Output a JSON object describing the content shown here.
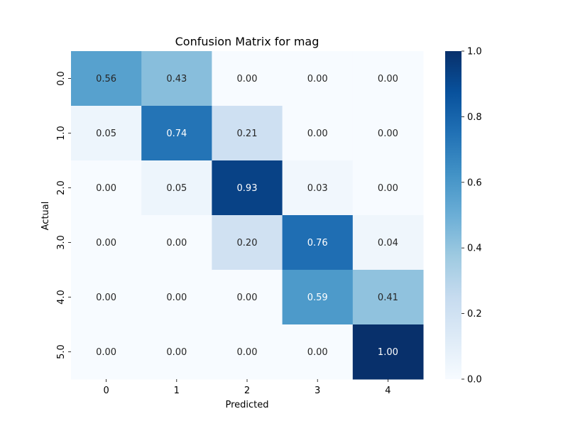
{
  "chart_data": {
    "type": "heatmap",
    "title": "Confusion Matrix for mag",
    "xlabel": "Predicted",
    "ylabel": "Actual",
    "x_categories": [
      "0",
      "1",
      "2",
      "3",
      "4"
    ],
    "y_categories": [
      "0.0",
      "1.0",
      "2.0",
      "3.0",
      "4.0",
      "5.0"
    ],
    "values": [
      [
        0.56,
        0.43,
        0.0,
        0.0,
        0.0
      ],
      [
        0.05,
        0.74,
        0.21,
        0.0,
        0.0
      ],
      [
        0.0,
        0.05,
        0.93,
        0.03,
        0.0
      ],
      [
        0.0,
        0.0,
        0.2,
        0.76,
        0.04
      ],
      [
        0.0,
        0.0,
        0.0,
        0.59,
        0.41
      ],
      [
        0.0,
        0.0,
        0.0,
        0.0,
        1.0
      ]
    ],
    "value_format": "0.00",
    "colormap": "Blues",
    "colorbar": {
      "range": [
        0.0,
        1.0
      ],
      "ticks": [
        "0.0",
        "0.2",
        "0.4",
        "0.6",
        "0.8",
        "1.0"
      ]
    }
  }
}
